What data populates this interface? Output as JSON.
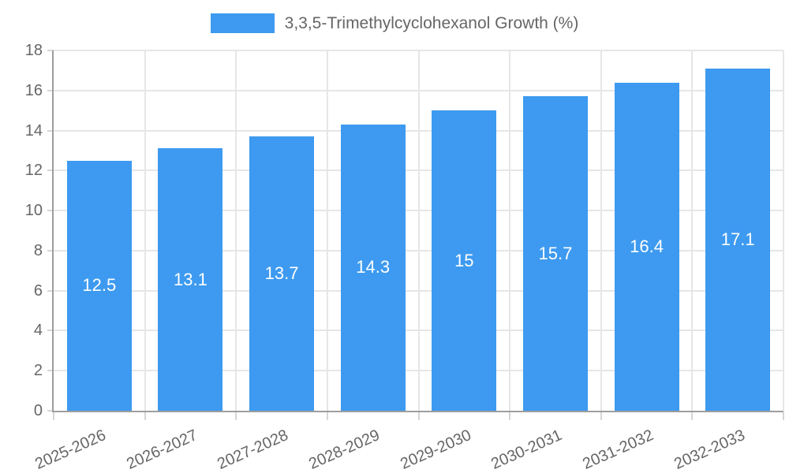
{
  "chart_data": {
    "type": "bar",
    "title": "3,3,5-Trimethylcyclohexanol Growth (%)",
    "legend_position": "top",
    "categories": [
      "2025-2026",
      "2026-2027",
      "2027-2028",
      "2028-2029",
      "2029-2030",
      "2030-2031",
      "2031-2032",
      "2032-2033"
    ],
    "values": [
      12.5,
      13.1,
      13.7,
      14.3,
      15,
      15.7,
      16.4,
      17.1
    ],
    "value_labels": [
      "12.5",
      "13.1",
      "13.7",
      "14.3",
      "15",
      "15.7",
      "16.4",
      "17.1"
    ],
    "xlabel": "",
    "ylabel": "",
    "ylim": [
      0,
      18
    ],
    "yticks": [
      0,
      2,
      4,
      6,
      8,
      10,
      12,
      14,
      16,
      18
    ],
    "grid": true,
    "x_label_rotation_deg": -24,
    "colors": {
      "bar": "#3D9AF0",
      "value_label": "#FFFFFF",
      "axis_text": "#666666",
      "legend_text": "#666666",
      "grid_line": "#E6E6E6",
      "tick_mark": "#D6D6D6",
      "axis_line": "#9E9E9E",
      "background": "#FFFFFF"
    }
  }
}
